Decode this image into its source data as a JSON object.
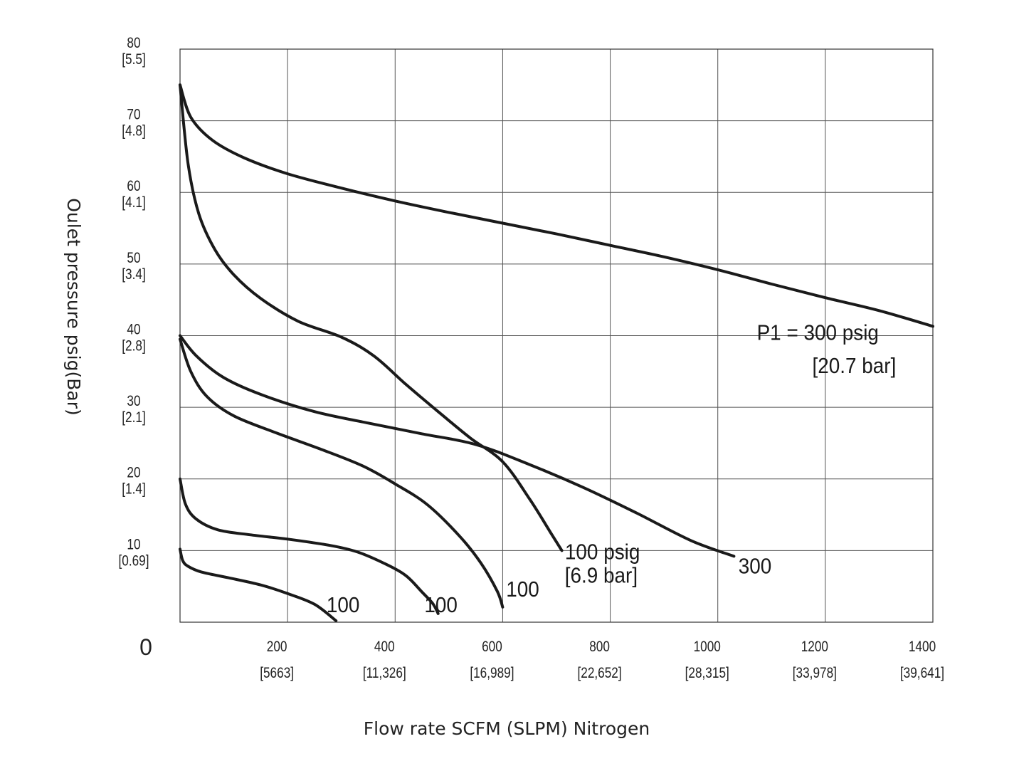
{
  "chart_data": {
    "type": "line",
    "title": "",
    "xlabel": "Flow rate SCFM (SLPM) Nitrogen",
    "ylabel": "Oulet pressure psig(Bar)",
    "xlim": [
      0,
      1400
    ],
    "ylim": [
      0,
      80
    ],
    "grid": true,
    "origin_label": "0",
    "x_ticks": [
      {
        "value": 200,
        "label": "200",
        "sublabel": "[5663]"
      },
      {
        "value": 400,
        "label": "400",
        "sublabel": "[11,326]"
      },
      {
        "value": 600,
        "label": "600",
        "sublabel": "[16,989]"
      },
      {
        "value": 800,
        "label": "800",
        "sublabel": "[22,652]"
      },
      {
        "value": 1000,
        "label": "1000",
        "sublabel": "[28,315]"
      },
      {
        "value": 1200,
        "label": "1200",
        "sublabel": "[33,978]"
      },
      {
        "value": 1400,
        "label": "1400",
        "sublabel": "[39,641]"
      }
    ],
    "y_ticks": [
      {
        "value": 10,
        "label": "10",
        "sublabel": "[0.69]"
      },
      {
        "value": 20,
        "label": "20",
        "sublabel": "[1.4]"
      },
      {
        "value": 30,
        "label": "30",
        "sublabel": "[2.1]"
      },
      {
        "value": 40,
        "label": "40",
        "sublabel": "[2.8]"
      },
      {
        "value": 50,
        "label": "50",
        "sublabel": "[3.4]"
      },
      {
        "value": 60,
        "label": "60",
        "sublabel": "[4.1]"
      },
      {
        "value": 70,
        "label": "70",
        "sublabel": "[4.8]"
      },
      {
        "value": 80,
        "label": "80",
        "sublabel": "[5.5]"
      }
    ],
    "series": [
      {
        "name": "P1 = 300 psig [20.7 bar]",
        "points": [
          [
            0,
            75
          ],
          [
            20,
            70.5
          ],
          [
            60,
            67.3
          ],
          [
            120,
            64.8
          ],
          [
            200,
            62.6
          ],
          [
            300,
            60.6
          ],
          [
            400,
            58.8
          ],
          [
            500,
            57.2
          ],
          [
            600,
            55.7
          ],
          [
            700,
            54.2
          ],
          [
            800,
            52.6
          ],
          [
            900,
            51
          ],
          [
            1000,
            49.2
          ],
          [
            1100,
            47.2
          ],
          [
            1200,
            45.3
          ],
          [
            1300,
            43.5
          ],
          [
            1400,
            41.3
          ]
        ]
      },
      {
        "name": "300",
        "points": [
          [
            0,
            40
          ],
          [
            30,
            37.2
          ],
          [
            80,
            34.2
          ],
          [
            150,
            31.8
          ],
          [
            250,
            29.4
          ],
          [
            350,
            27.8
          ],
          [
            450,
            26.3
          ],
          [
            550,
            24.8
          ],
          [
            650,
            22
          ],
          [
            750,
            18.8
          ],
          [
            850,
            15.2
          ],
          [
            950,
            11.4
          ],
          [
            1030,
            9.2
          ]
        ]
      },
      {
        "name": "100 psig [6.9 bar]",
        "points": [
          [
            0,
            75
          ],
          [
            15,
            64
          ],
          [
            35,
            57
          ],
          [
            65,
            52
          ],
          [
            100,
            48.5
          ],
          [
            150,
            45.2
          ],
          [
            220,
            42
          ],
          [
            300,
            39.8
          ],
          [
            360,
            37.2
          ],
          [
            420,
            33.2
          ],
          [
            480,
            29.4
          ],
          [
            540,
            25.7
          ],
          [
            600,
            22.4
          ],
          [
            650,
            17.2
          ],
          [
            690,
            12.4
          ],
          [
            710,
            10
          ]
        ]
      },
      {
        "name": "100",
        "points": [
          [
            0,
            39.5
          ],
          [
            20,
            35
          ],
          [
            50,
            31.5
          ],
          [
            100,
            28.8
          ],
          [
            180,
            26.4
          ],
          [
            260,
            24.2
          ],
          [
            340,
            21.8
          ],
          [
            400,
            19.3
          ],
          [
            460,
            16.4
          ],
          [
            520,
            12
          ],
          [
            560,
            8.2
          ],
          [
            590,
            4.3
          ],
          [
            600,
            2.1
          ]
        ]
      },
      {
        "name": "100",
        "points": [
          [
            0,
            20
          ],
          [
            10,
            16.5
          ],
          [
            30,
            14.4
          ],
          [
            70,
            12.9
          ],
          [
            130,
            12.2
          ],
          [
            200,
            11.6
          ],
          [
            280,
            10.7
          ],
          [
            330,
            9.8
          ],
          [
            380,
            8.2
          ],
          [
            420,
            6.5
          ],
          [
            450,
            4.2
          ],
          [
            470,
            2.6
          ],
          [
            480,
            1.2
          ]
        ]
      },
      {
        "name": "100",
        "points": [
          [
            0,
            10.2
          ],
          [
            5,
            8.6
          ],
          [
            15,
            7.8
          ],
          [
            40,
            7
          ],
          [
            90,
            6.2
          ],
          [
            150,
            5.2
          ],
          [
            200,
            4
          ],
          [
            250,
            2.5
          ],
          [
            290,
            0.2
          ]
        ]
      }
    ],
    "annotations": [
      {
        "text": "P1 = 300 psig",
        "x": 1060,
        "y": 39.4
      },
      {
        "text": "[20.7 bar]",
        "x": 1167,
        "y": 34.8
      },
      {
        "text": "300",
        "x": 1035,
        "y": 6.8
      },
      {
        "text": "100 psig",
        "x": 708,
        "y": 8.8
      },
      {
        "text": "[6.9 bar]",
        "x": 708,
        "y": 5.5
      },
      {
        "text": "100",
        "x": 603,
        "y": 3.6
      },
      {
        "text": "100",
        "x": 451,
        "y": 1.4
      },
      {
        "text": "100",
        "x": 269,
        "y": 1.4
      }
    ]
  }
}
